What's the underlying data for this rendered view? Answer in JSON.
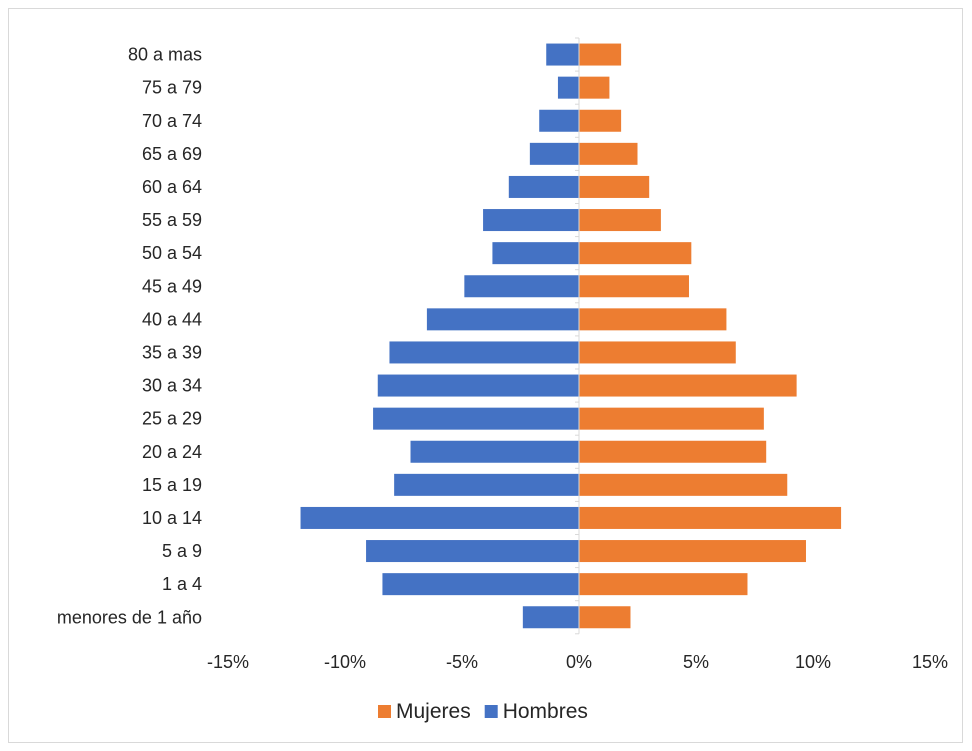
{
  "chart_data": {
    "type": "bar",
    "orientation": "horizontal",
    "stacked": true,
    "categories": [
      "menores de 1 año",
      "1 a 4",
      "5 a 9",
      "10 a 14",
      "15 a 19",
      "20 a 24",
      "25 a 29",
      "30 a 34",
      "35 a 39",
      "40 a 44",
      "45 a 49",
      "50 a 54",
      "55 a 59",
      "60 a 64",
      "65 a 69",
      "70 a 74",
      "75 a 79",
      "80  a mas"
    ],
    "series": [
      {
        "name": "Mujeres",
        "color": "#ed7d31",
        "values": [
          2.2,
          7.2,
          9.7,
          11.2,
          8.9,
          8.0,
          7.9,
          9.3,
          6.7,
          6.3,
          4.7,
          4.8,
          3.5,
          3.0,
          2.5,
          1.8,
          1.3,
          1.8
        ]
      },
      {
        "name": "Hombres",
        "color": "#4472c4",
        "values": [
          -2.4,
          -8.4,
          -9.1,
          -11.9,
          -7.9,
          -7.2,
          -8.8,
          -8.6,
          -8.1,
          -6.5,
          -4.9,
          -3.7,
          -4.1,
          -3.0,
          -2.1,
          -1.7,
          -0.9,
          -1.4
        ]
      }
    ],
    "xlim": [
      -15,
      15
    ],
    "xticks": [
      -15,
      -10,
      -5,
      0,
      5,
      10,
      15
    ],
    "xtick_labels": [
      "-15%",
      "-10%",
      "-5%",
      "0%",
      "5%",
      "10%",
      "15%"
    ],
    "title": "",
    "xlabel": "",
    "ylabel": "",
    "grid": false,
    "legend_position": "bottom",
    "legend_order": [
      "Mujeres",
      "Hombres"
    ]
  }
}
